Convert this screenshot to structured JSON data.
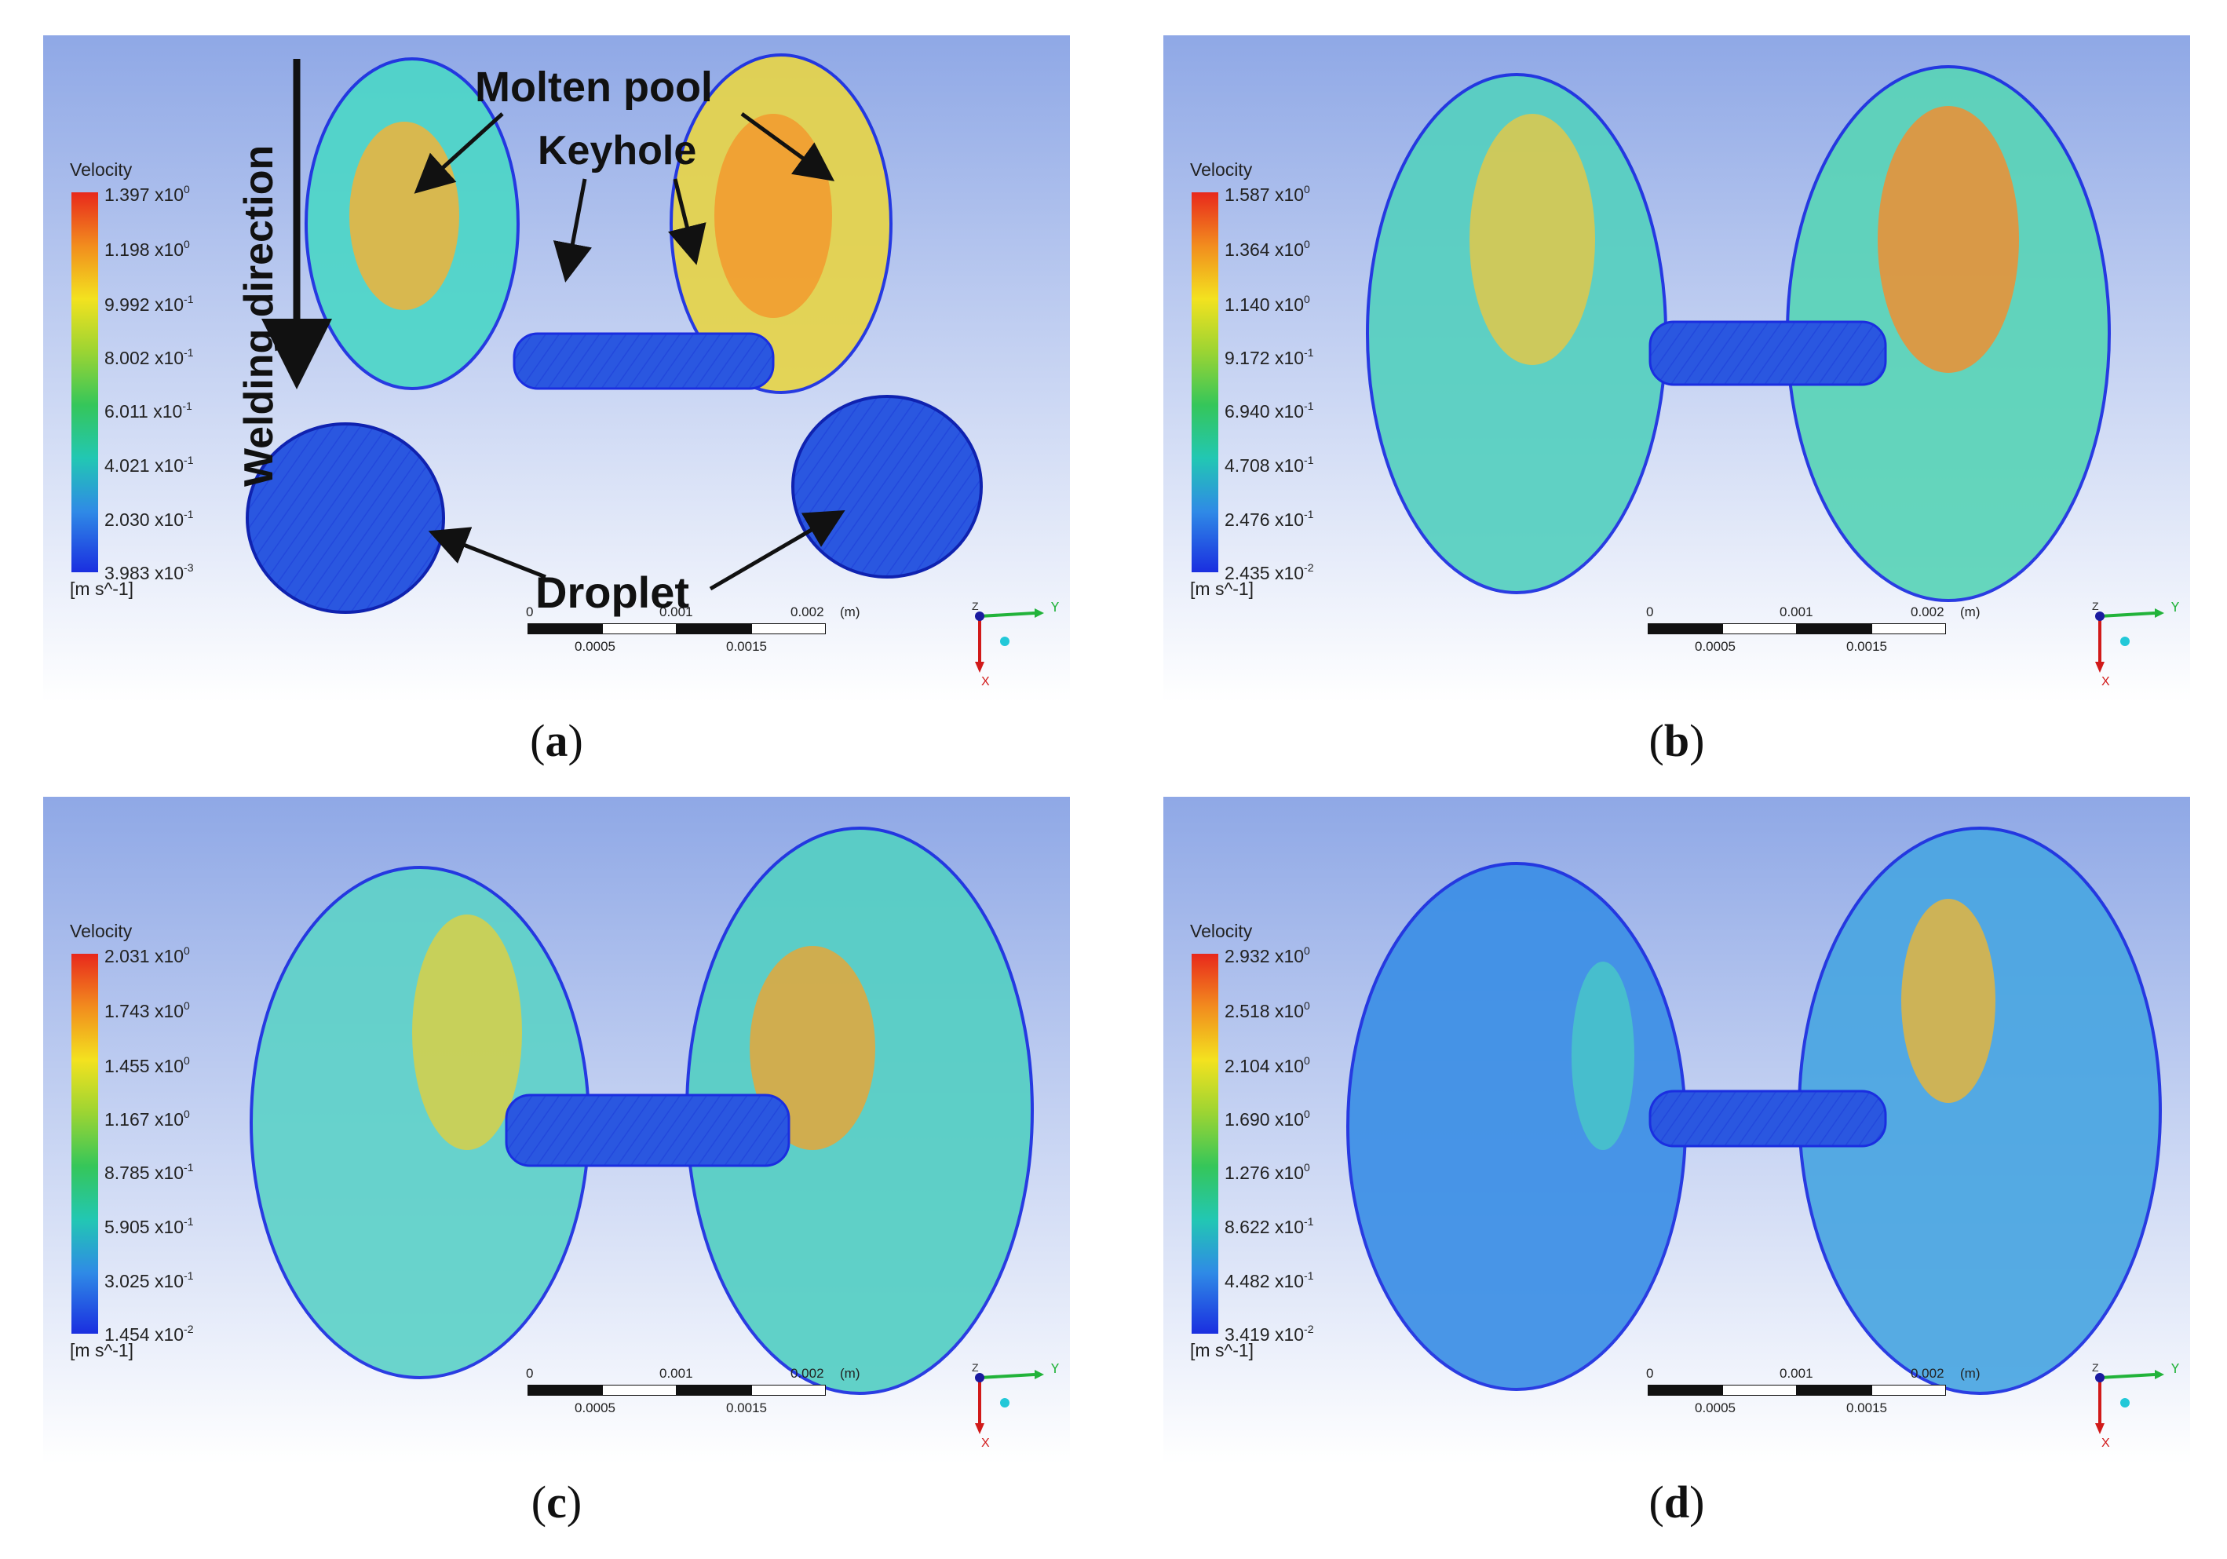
{
  "annotations": {
    "welding_direction": "Welding direction",
    "molten_pool": "Molten pool",
    "keyhole": "Keyhole",
    "droplet": "Droplet"
  },
  "legend_title": "Velocity",
  "legend_unit": "[m s^-1]",
  "scalebar": {
    "top_labels": [
      "0",
      "0.001",
      "0.002",
      "(m)"
    ],
    "bottom_labels": [
      "0.0005",
      "0.0015"
    ]
  },
  "axis_labels": {
    "y": "Y",
    "x": "X",
    "z": "Z"
  },
  "colors": {
    "sky_top": "#8fa8e6",
    "sky_bottom": "#ffffff",
    "low": "#1a2ee0",
    "high": "#e8281c"
  },
  "panels": [
    {
      "caption": "a",
      "ticks": [
        [
          "1.397",
          "x10",
          "0"
        ],
        [
          "1.198",
          "x10",
          "0"
        ],
        [
          "9.992",
          "x10",
          "-1"
        ],
        [
          "8.002",
          "x10",
          "-1"
        ],
        [
          "6.011",
          "x10",
          "-1"
        ],
        [
          "4.021",
          "x10",
          "-1"
        ],
        [
          "2.030",
          "x10",
          "-1"
        ],
        [
          "3.983",
          "x10",
          "-3"
        ]
      ]
    },
    {
      "caption": "b",
      "ticks": [
        [
          "1.587",
          "x10",
          "0"
        ],
        [
          "1.364",
          "x10",
          "0"
        ],
        [
          "1.140",
          "x10",
          "0"
        ],
        [
          "9.172",
          "x10",
          "-1"
        ],
        [
          "6.940",
          "x10",
          "-1"
        ],
        [
          "4.708",
          "x10",
          "-1"
        ],
        [
          "2.476",
          "x10",
          "-1"
        ],
        [
          "2.435",
          "x10",
          "-2"
        ]
      ]
    },
    {
      "caption": "c",
      "ticks": [
        [
          "2.031",
          "x10",
          "0"
        ],
        [
          "1.743",
          "x10",
          "0"
        ],
        [
          "1.455",
          "x10",
          "0"
        ],
        [
          "1.167",
          "x10",
          "0"
        ],
        [
          "8.785",
          "x10",
          "-1"
        ],
        [
          "5.905",
          "x10",
          "-1"
        ],
        [
          "3.025",
          "x10",
          "-1"
        ],
        [
          "1.454",
          "x10",
          "-2"
        ]
      ]
    },
    {
      "caption": "d",
      "ticks": [
        [
          "2.932",
          "x10",
          "0"
        ],
        [
          "2.518",
          "x10",
          "0"
        ],
        [
          "2.104",
          "x10",
          "0"
        ],
        [
          "1.690",
          "x10",
          "0"
        ],
        [
          "1.276",
          "x10",
          "0"
        ],
        [
          "8.622",
          "x10",
          "-1"
        ],
        [
          "4.482",
          "x10",
          "-1"
        ],
        [
          "3.419",
          "x10",
          "-2"
        ]
      ]
    }
  ]
}
